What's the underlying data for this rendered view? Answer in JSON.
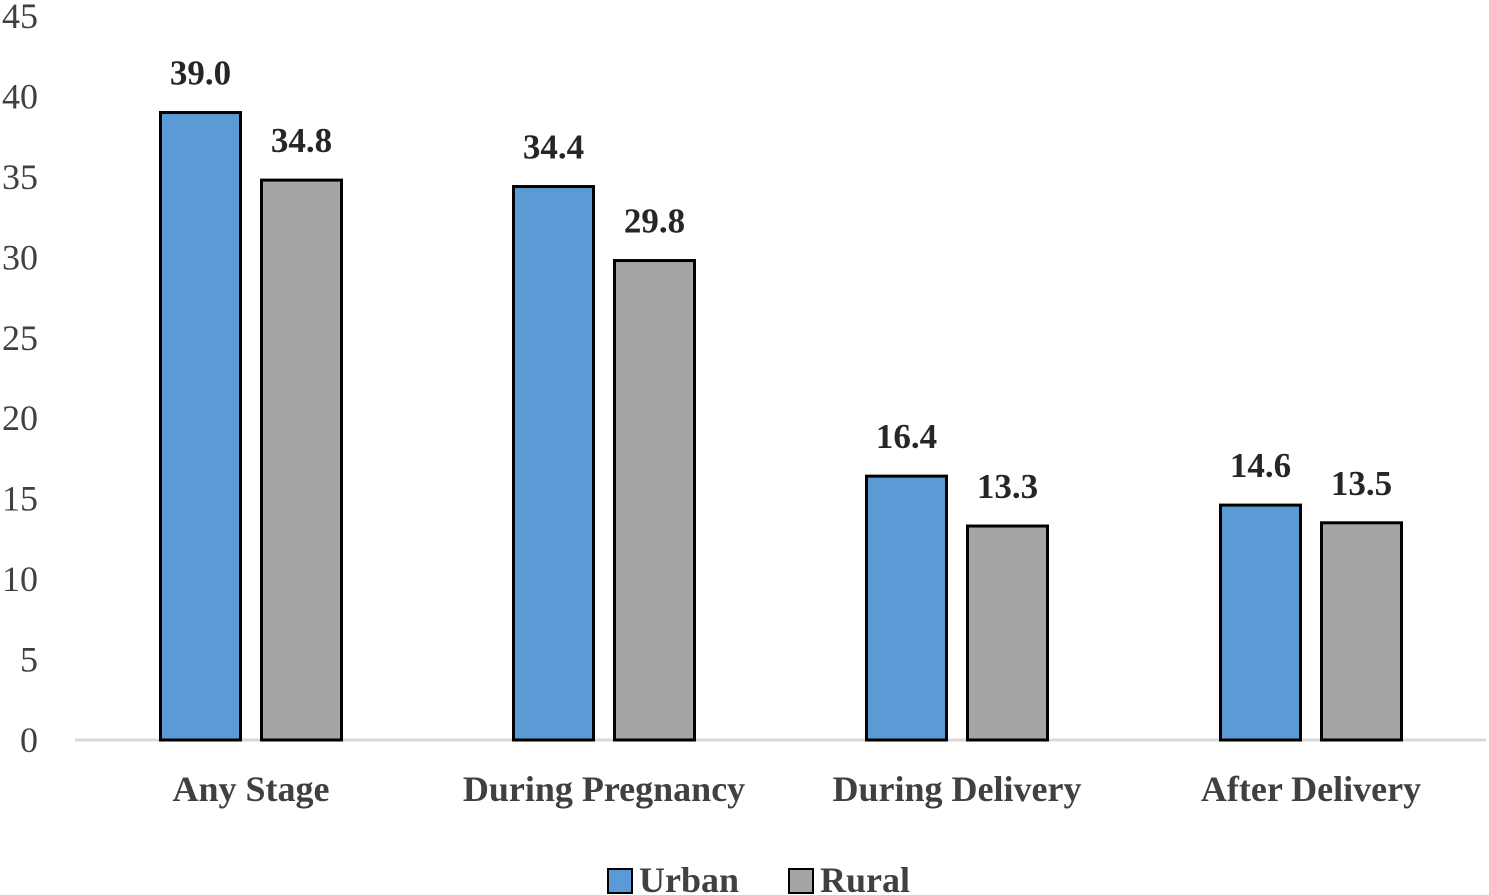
{
  "chart_data": {
    "type": "bar",
    "categories": [
      "Any Stage",
      "During Pregnancy",
      "During Delivery",
      "After Delivery"
    ],
    "series": [
      {
        "name": "Urban",
        "values": [
          39.0,
          34.4,
          16.4,
          14.6
        ],
        "labels": [
          "39.0",
          "34.4",
          "16.4",
          "14.6"
        ],
        "color": "#5b9bd5"
      },
      {
        "name": "Rural",
        "values": [
          34.8,
          29.8,
          13.3,
          13.5
        ],
        "labels": [
          "34.8",
          "29.8",
          "13.3",
          "13.5"
        ],
        "color": "#a5a5a5"
      }
    ],
    "yticks": [
      "0",
      "5",
      "10",
      "15",
      "20",
      "25",
      "30",
      "35",
      "40",
      "45"
    ],
    "ylim": [
      0,
      45
    ],
    "title": "",
    "xlabel": "",
    "ylabel": "",
    "legend_position": "bottom",
    "grid": false,
    "axis_color": "#d9d9d9",
    "bar_outline_color": "#000000"
  }
}
